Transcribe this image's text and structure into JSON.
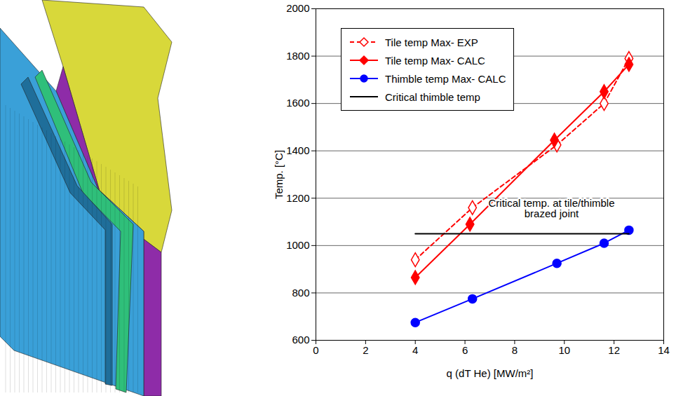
{
  "chart_data": {
    "type": "line",
    "xlabel": "q (dT He) [MW/m²]",
    "ylabel": "Temp. [°C]",
    "xlim": [
      0,
      14
    ],
    "xticks": [
      0,
      2,
      4,
      6,
      8,
      10,
      12,
      14
    ],
    "ylim": [
      600,
      2000
    ],
    "yticks": [
      600,
      800,
      1000,
      1200,
      1400,
      1600,
      1800,
      2000
    ],
    "grid": "y",
    "legend": "top-left",
    "annotations": [
      "Critical temp. at tile/thimble\nbrazed joint"
    ],
    "series": [
      {
        "name": "Tile temp Max- EXP",
        "color": "#ff0000",
        "marker": "open-diamond",
        "line_style": "dashed",
        "x": [
          4,
          6.3,
          9.7,
          11.6,
          12.6
        ],
        "values": [
          940,
          1160,
          1425,
          1600,
          1790
        ]
      },
      {
        "name": "Tile temp Max- CALC",
        "color": "#ff0000",
        "marker": "diamond",
        "line_style": "solid",
        "x": [
          4,
          6.2,
          9.6,
          11.6,
          12.6
        ],
        "values": [
          865,
          1090,
          1445,
          1650,
          1765
        ]
      },
      {
        "name": "Thimble temp Max- CALC",
        "color": "#0000ff",
        "marker": "circle",
        "line_style": "solid",
        "x": [
          4,
          6.3,
          9.7,
          11.6,
          12.6
        ],
        "values": [
          675,
          775,
          925,
          1010,
          1065
        ]
      },
      {
        "name": "Critical thimble temp",
        "color": "#000000",
        "marker": "none",
        "line_style": "solid",
        "x": [
          4,
          12.6
        ],
        "values": [
          1050,
          1050
        ]
      }
    ]
  }
}
